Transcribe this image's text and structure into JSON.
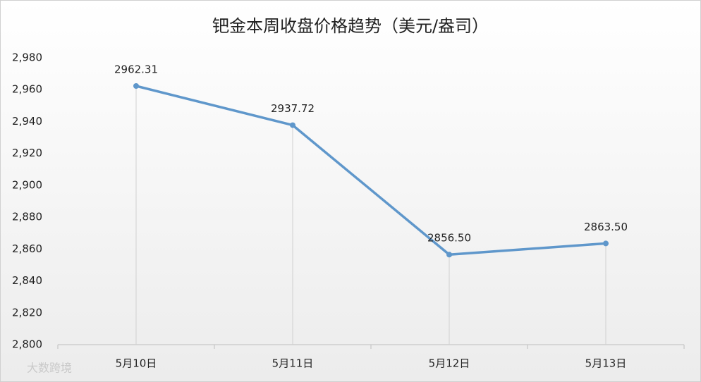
{
  "chart_data": {
    "type": "line",
    "title": "钯金本周收盘价格趋势（美元/盎司）",
    "categories": [
      "5月10日",
      "5月11日",
      "5月12日",
      "5月13日"
    ],
    "values": [
      2962.31,
      2937.72,
      2856.5,
      2863.5
    ],
    "value_labels": [
      "2962.31",
      "2937.72",
      "2856.50",
      "2863.50"
    ],
    "color": "#5f97cb",
    "ylim": [
      2800,
      2980
    ],
    "yticks": [
      {
        "value": 2800,
        "label": "2,800"
      },
      {
        "value": 2820,
        "label": "2,820"
      },
      {
        "value": 2840,
        "label": "2,840"
      },
      {
        "value": 2860,
        "label": "2,860"
      },
      {
        "value": 2880,
        "label": "2,880"
      },
      {
        "value": 2900,
        "label": "2,900"
      },
      {
        "value": 2920,
        "label": "2,920"
      },
      {
        "value": 2940,
        "label": "2,940"
      },
      {
        "value": 2960,
        "label": "2,960"
      },
      {
        "value": 2980,
        "label": "2,980"
      }
    ],
    "drop_lines": true,
    "watermark": "大数跨境"
  }
}
